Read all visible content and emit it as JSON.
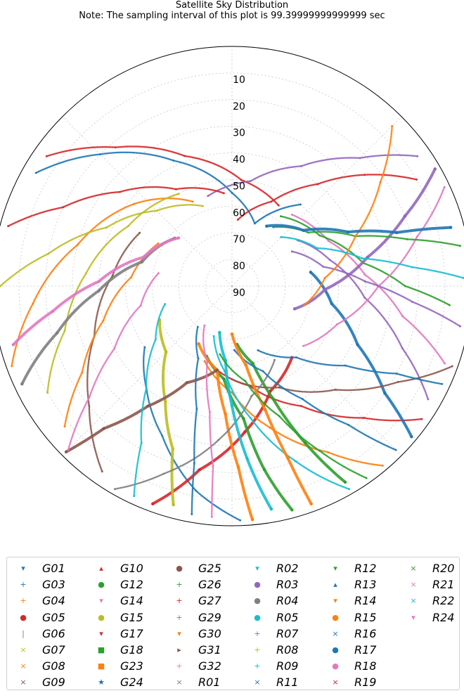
{
  "title": "Satellite Sky Distribution",
  "subtitle": "Note: The sampling interval of this plot is 99.39999999999999 sec",
  "chart_data": {
    "type": "scatter",
    "projection": "polar",
    "title": "Satellite Sky Distribution",
    "subtitle": "Note: The sampling interval of this plot is 99.39999999999999 sec",
    "radial_axis": "elevation",
    "radial_ticks": [
      "90",
      "80",
      "70",
      "60",
      "50",
      "40",
      "30",
      "20",
      "10"
    ],
    "rlim": [
      90,
      0
    ],
    "grid": true,
    "legend_position": "bottom",
    "legend_columns": 6,
    "series": [
      {
        "name": "G01",
        "color": "#1f77b4",
        "marker": "▾",
        "track": [
          [
            235,
            50
          ],
          [
            220,
            40
          ],
          [
            205,
            28
          ],
          [
            190,
            12
          ],
          [
            178,
            2
          ]
        ]
      },
      {
        "name": "G03",
        "color": "#1f77b4",
        "marker": "+",
        "track": [
          [
            300,
            5
          ],
          [
            315,
            20
          ],
          [
            335,
            38
          ],
          [
            0,
            55
          ],
          [
            20,
            65
          ],
          [
            40,
            50
          ]
        ]
      },
      {
        "name": "G04",
        "color": "#ff7f0e",
        "marker": "+",
        "track": [
          [
            250,
            2
          ],
          [
            265,
            15
          ],
          [
            285,
            30
          ],
          [
            310,
            42
          ],
          [
            335,
            55
          ]
        ]
      },
      {
        "name": "G05",
        "color": "#d62728",
        "marker": "●",
        "track": [
          [
            200,
            3
          ],
          [
            190,
            20
          ],
          [
            175,
            35
          ],
          [
            160,
            48
          ],
          [
            140,
            55
          ]
        ]
      },
      {
        "name": "G06",
        "color": "#9467bd",
        "marker": "|",
        "track": [
          [
            120,
            5
          ],
          [
            110,
            22
          ],
          [
            95,
            40
          ],
          [
            75,
            52
          ],
          [
            55,
            60
          ]
        ]
      },
      {
        "name": "G07",
        "color": "#bcbd22",
        "marker": "×",
        "track": [
          [
            240,
            10
          ],
          [
            255,
            25
          ],
          [
            275,
            35
          ],
          [
            300,
            45
          ],
          [
            330,
            50
          ]
        ]
      },
      {
        "name": "G08",
        "color": "#ff7f0e",
        "marker": "×",
        "track": [
          [
            140,
            2
          ],
          [
            150,
            18
          ],
          [
            165,
            35
          ],
          [
            180,
            50
          ],
          [
            200,
            60
          ]
        ]
      },
      {
        "name": "G09",
        "color": "#8c564b",
        "marker": "×",
        "track": [
          [
            215,
            5
          ],
          [
            230,
            20
          ],
          [
            250,
            35
          ],
          [
            275,
            45
          ],
          [
            300,
            50
          ]
        ]
      },
      {
        "name": "G10",
        "color": "#d62728",
        "marker": "▴",
        "track": [
          [
            60,
            10
          ],
          [
            50,
            25
          ],
          [
            40,
            40
          ],
          [
            25,
            55
          ],
          [
            5,
            65
          ]
        ]
      },
      {
        "name": "G12",
        "color": "#2ca02c",
        "marker": "●",
        "track": [
          [
            165,
            3
          ],
          [
            170,
            20
          ],
          [
            175,
            40
          ],
          [
            185,
            55
          ],
          [
            200,
            62
          ]
        ]
      },
      {
        "name": "G14",
        "color": "#e377c2",
        "marker": "▾",
        "track": [
          [
            110,
            5
          ],
          [
            100,
            25
          ],
          [
            85,
            40
          ],
          [
            65,
            50
          ],
          [
            40,
            55
          ]
        ]
      },
      {
        "name": "G15",
        "color": "#bcbd22",
        "marker": "●",
        "track": [
          [
            195,
            5
          ],
          [
            200,
            25
          ],
          [
            210,
            40
          ],
          [
            225,
            55
          ],
          [
            245,
            60
          ]
        ]
      },
      {
        "name": "G17",
        "color": "#d62728",
        "marker": "▾",
        "track": [
          [
            125,
            3
          ],
          [
            135,
            20
          ],
          [
            150,
            38
          ],
          [
            170,
            52
          ],
          [
            190,
            58
          ]
        ]
      },
      {
        "name": "G18",
        "color": "#2ca02c",
        "marker": "■",
        "track": [
          [
            150,
            5
          ],
          [
            155,
            25
          ],
          [
            160,
            45
          ],
          [
            165,
            60
          ],
          [
            175,
            68
          ]
        ]
      },
      {
        "name": "G23",
        "color": "#ff7f0e",
        "marker": "■",
        "track": [
          [
            175,
            2
          ],
          [
            178,
            22
          ],
          [
            183,
            42
          ],
          [
            190,
            58
          ],
          [
            210,
            65
          ]
        ]
      },
      {
        "name": "G24",
        "color": "#1f77b4",
        "marker": "★",
        "track": [
          [
            130,
            2
          ],
          [
            125,
            20
          ],
          [
            115,
            38
          ],
          [
            100,
            52
          ],
          [
            80,
            60
          ]
        ]
      },
      {
        "name": "G25",
        "color": "#8c564b",
        "marker": "●",
        "track": [
          [
            225,
            2
          ],
          [
            222,
            18
          ],
          [
            215,
            35
          ],
          [
            205,
            50
          ],
          [
            190,
            58
          ]
        ]
      },
      {
        "name": "G26",
        "color": "#2ca02c",
        "marker": "+",
        "track": [
          [
            95,
            8
          ],
          [
            90,
            25
          ],
          [
            80,
            40
          ],
          [
            60,
            52
          ],
          [
            35,
            58
          ]
        ]
      },
      {
        "name": "G27",
        "color": "#d62728",
        "marker": "+",
        "track": [
          [
            305,
            5
          ],
          [
            320,
            22
          ],
          [
            340,
            38
          ],
          [
            5,
            50
          ],
          [
            30,
            55
          ]
        ]
      },
      {
        "name": "G29",
        "color": "#9467bd",
        "marker": "+",
        "track": [
          [
            55,
            5
          ],
          [
            45,
            22
          ],
          [
            30,
            38
          ],
          [
            10,
            50
          ],
          [
            345,
            55
          ]
        ]
      },
      {
        "name": "G30",
        "color": "#ff7f0e",
        "marker": "▾",
        "track": [
          [
            230,
            8
          ],
          [
            240,
            25
          ],
          [
            255,
            40
          ],
          [
            275,
            52
          ],
          [
            300,
            58
          ]
        ]
      },
      {
        "name": "G31",
        "color": "#8c564b",
        "marker": "▸",
        "track": [
          [
            110,
            2
          ],
          [
            120,
            18
          ],
          [
            135,
            35
          ],
          [
            155,
            48
          ],
          [
            180,
            55
          ]
        ]
      },
      {
        "name": "G32",
        "color": "#e377c2",
        "marker": "+",
        "track": [
          [
            65,
            2
          ],
          [
            75,
            18
          ],
          [
            90,
            35
          ],
          [
            110,
            48
          ],
          [
            130,
            55
          ]
        ]
      },
      {
        "name": "R01",
        "color": "#7f7f7f",
        "marker": "×",
        "track": [
          [
            210,
            2
          ],
          [
            200,
            15
          ],
          [
            185,
            32
          ],
          [
            170,
            48
          ],
          [
            150,
            58
          ]
        ]
      },
      {
        "name": "R02",
        "color": "#17becf",
        "marker": "▾",
        "track": [
          [
            150,
            2
          ],
          [
            160,
            20
          ],
          [
            172,
            40
          ],
          [
            185,
            58
          ],
          [
            200,
            70
          ]
        ]
      },
      {
        "name": "R03",
        "color": "#9467bd",
        "marker": "●",
        "track": [
          [
            60,
            2
          ],
          [
            68,
            20
          ],
          [
            78,
            38
          ],
          [
            92,
            55
          ],
          [
            110,
            65
          ]
        ]
      },
      {
        "name": "R04",
        "color": "#7f7f7f",
        "marker": "●",
        "track": [
          [
            245,
            3
          ],
          [
            255,
            22
          ],
          [
            268,
            40
          ],
          [
            285,
            55
          ],
          [
            310,
            62
          ]
        ]
      },
      {
        "name": "R05",
        "color": "#17becf",
        "marker": "●",
        "track": [
          [
            170,
            5
          ],
          [
            175,
            25
          ],
          [
            180,
            45
          ],
          [
            185,
            62
          ],
          [
            195,
            72
          ]
        ]
      },
      {
        "name": "R07",
        "color": "#9467bd",
        "marker": "+",
        "track": [
          [
            100,
            3
          ],
          [
            95,
            22
          ],
          [
            88,
            40
          ],
          [
            78,
            55
          ],
          [
            60,
            64
          ]
        ]
      },
      {
        "name": "R08",
        "color": "#bcbd22",
        "marker": "+",
        "track": [
          [
            270,
            3
          ],
          [
            280,
            20
          ],
          [
            295,
            38
          ],
          [
            315,
            50
          ],
          [
            340,
            58
          ]
        ]
      },
      {
        "name": "R09",
        "color": "#17becf",
        "marker": "+",
        "track": [
          [
            205,
            3
          ],
          [
            210,
            22
          ],
          [
            220,
            40
          ],
          [
            235,
            55
          ],
          [
            255,
            64
          ]
        ]
      },
      {
        "name": "R11",
        "color": "#1f77b4",
        "marker": "×",
        "track": [
          [
            135,
            3
          ],
          [
            140,
            22
          ],
          [
            148,
            40
          ],
          [
            160,
            56
          ],
          [
            178,
            66
          ]
        ]
      },
      {
        "name": "R12",
        "color": "#2ca02c",
        "marker": "▾",
        "track": [
          [
            80,
            3
          ],
          [
            75,
            22
          ],
          [
            68,
            40
          ],
          [
            55,
            55
          ],
          [
            35,
            63
          ]
        ]
      },
      {
        "name": "R13",
        "color": "#1f77b4",
        "marker": "▴",
        "track": [
          [
            190,
            3
          ],
          [
            192,
            22
          ],
          [
            196,
            42
          ],
          [
            205,
            60
          ],
          [
            220,
            70
          ]
        ]
      },
      {
        "name": "R14",
        "color": "#ff7f0e",
        "marker": "▾",
        "track": [
          [
            45,
            5
          ],
          [
            55,
            22
          ],
          [
            68,
            40
          ],
          [
            85,
            55
          ],
          [
            105,
            62
          ]
        ]
      },
      {
        "name": "R15",
        "color": "#ff7f0e",
        "marker": "●",
        "track": [
          [
            160,
            3
          ],
          [
            162,
            22
          ],
          [
            165,
            42
          ],
          [
            170,
            60
          ],
          [
            180,
            72
          ]
        ]
      },
      {
        "name": "R16",
        "color": "#1f77b4",
        "marker": "×",
        "track": [
          [
            115,
            3
          ],
          [
            118,
            20
          ],
          [
            125,
            38
          ],
          [
            138,
            54
          ],
          [
            158,
            64
          ]
        ]
      },
      {
        "name": "R17",
        "color": "#1f77b4",
        "marker": "●",
        "track": [
          [
            75,
            5
          ],
          [
            72,
            25
          ],
          [
            65,
            42
          ],
          [
            52,
            56
          ],
          [
            30,
            64
          ]
        ]
      },
      {
        "name": "R18",
        "color": "#e377c2",
        "marker": "●",
        "track": [
          [
            255,
            5
          ],
          [
            262,
            22
          ],
          [
            272,
            40
          ],
          [
            288,
            55
          ],
          [
            312,
            63
          ]
        ]
      },
      {
        "name": "R19",
        "color": "#d62728",
        "marker": "×",
        "track": [
          [
            285,
            3
          ],
          [
            295,
            20
          ],
          [
            310,
            35
          ],
          [
            330,
            48
          ],
          [
            355,
            55
          ]
        ]
      },
      {
        "name": "R20",
        "color": "#2ca02c",
        "marker": "×",
        "track": [
          [
            145,
            2
          ],
          [
            152,
            20
          ],
          [
            160,
            38
          ],
          [
            172,
            54
          ],
          [
            190,
            64
          ]
        ]
      },
      {
        "name": "R21",
        "color": "#e377c2",
        "marker": "×",
        "track": [
          [
            225,
            3
          ],
          [
            232,
            22
          ],
          [
            242,
            40
          ],
          [
            258,
            55
          ],
          [
            280,
            62
          ]
        ]
      },
      {
        "name": "R22",
        "color": "#17becf",
        "marker": "×",
        "track": [
          [
            88,
            3
          ],
          [
            84,
            22
          ],
          [
            78,
            40
          ],
          [
            66,
            55
          ],
          [
            45,
            64
          ]
        ]
      },
      {
        "name": "R24",
        "color": "#e377c2",
        "marker": "▾",
        "track": [
          [
            185,
            3
          ],
          [
            186,
            22
          ],
          [
            190,
            42
          ],
          [
            198,
            60
          ],
          [
            215,
            72
          ]
        ]
      }
    ]
  }
}
